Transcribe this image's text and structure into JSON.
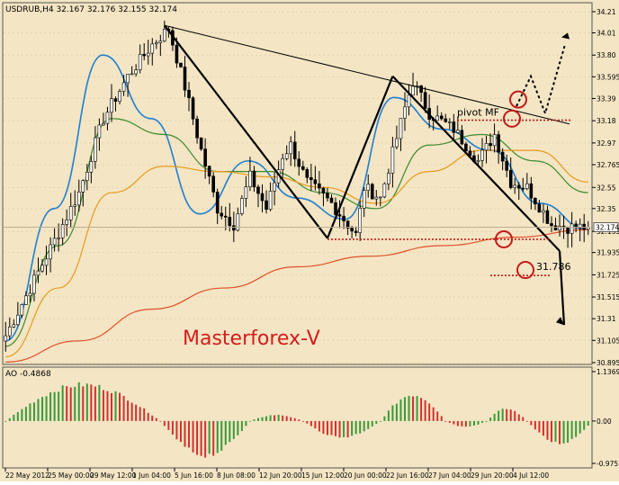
{
  "chart_data": [
    {
      "type": "candlestick",
      "symbol_header": "USDRUB,H4  32.167 32.176 32.155 32.174",
      "last_price_label": "32.174",
      "last_price": 32.174,
      "ylim": [
        30.895,
        34.21
      ],
      "price_ticks": [
        34.21,
        34.01,
        33.8,
        33.595,
        33.39,
        33.18,
        32.97,
        32.765,
        32.55,
        32.35,
        32.135,
        31.935,
        31.725,
        31.515,
        31.31,
        31.105,
        30.895
      ],
      "date_labels": [
        "22 May 2012",
        "25 May 00:00",
        "29 May 12:00",
        "1 Jun 04:00",
        "5 Jun 16:00",
        "8 Jun 08:00",
        "12 Jun 20:00",
        "15 Jun 12:00",
        "20 Jun 00:00",
        "22 Jun 16:00",
        "27 Jun 04:00",
        "29 Jun 20:00",
        "4 Jul 12:00"
      ],
      "bar_count": 144,
      "close_path": [
        [
          0,
          31.15
        ],
        [
          6,
          31.6
        ],
        [
          12,
          32.05
        ],
        [
          18,
          32.5
        ],
        [
          24,
          33.2
        ],
        [
          30,
          33.6
        ],
        [
          36,
          33.9
        ],
        [
          40,
          34.05
        ],
        [
          44,
          33.5
        ],
        [
          48,
          32.9
        ],
        [
          52,
          32.35
        ],
        [
          56,
          32.2
        ],
        [
          60,
          32.65
        ],
        [
          64,
          32.35
        ],
        [
          68,
          32.85
        ],
        [
          70,
          32.95
        ],
        [
          74,
          32.6
        ],
        [
          80,
          32.4
        ],
        [
          86,
          32.1
        ],
        [
          88,
          32.55
        ],
        [
          92,
          32.45
        ],
        [
          98,
          33.3
        ],
        [
          100,
          33.55
        ],
        [
          104,
          33.25
        ],
        [
          110,
          33.1
        ],
        [
          116,
          32.8
        ],
        [
          120,
          33.05
        ],
        [
          124,
          32.6
        ],
        [
          128,
          32.55
        ],
        [
          134,
          32.2
        ],
        [
          138,
          32.174
        ]
      ],
      "indicators": [
        {
          "name": "",
          "color": "#1e7fd4",
          "values": [
            31.1,
            32.35,
            33.8,
            33.2,
            32.3,
            32.8,
            32.45,
            32.25,
            33.4,
            33.1,
            32.9,
            32.4,
            32.15
          ]
        },
        {
          "name": "",
          "color": "#3b8a2f",
          "values": [
            31.05,
            32.0,
            33.2,
            33.05,
            32.7,
            32.7,
            32.5,
            32.35,
            32.95,
            33.05,
            32.8,
            32.5
          ]
        },
        {
          "name": "",
          "color": "#e79a1b",
          "values": [
            30.95,
            31.6,
            32.5,
            32.75,
            32.7,
            32.65,
            32.55,
            32.4,
            32.7,
            32.9,
            32.9,
            32.6
          ]
        },
        {
          "name": "",
          "color": "#e0502a",
          "values": [
            30.9,
            31.1,
            31.4,
            31.6,
            31.8,
            31.9,
            32.0,
            32.08,
            32.15
          ]
        }
      ],
      "annotations": {
        "pivot_label": "pivot MF",
        "pivot_level": 33.185,
        "support_level": 32.06,
        "target_label": "31.786",
        "target_level": 31.786
      },
      "watermark": "Masterforex-V"
    },
    {
      "type": "bar",
      "indicator_header": "AO -0.4868",
      "ylim": [
        -0.9757,
        1.1369
      ],
      "ticks": [
        1.1369,
        0.0,
        -0.9757
      ],
      "tick_labels": [
        "1.1369",
        "0.00",
        "-0.9757"
      ],
      "phases": [
        {
          "start": 0,
          "end": 38,
          "peak": 0.9
        },
        {
          "start": 38,
          "end": 60,
          "peak": -0.85
        },
        {
          "start": 60,
          "end": 73,
          "peak": 0.15
        },
        {
          "start": 73,
          "end": 92,
          "peak": -0.4
        },
        {
          "start": 92,
          "end": 108,
          "peak": 0.65
        },
        {
          "start": 108,
          "end": 118,
          "peak": -0.15
        },
        {
          "start": 118,
          "end": 128,
          "peak": 0.3
        },
        {
          "start": 128,
          "end": 144,
          "peak": -0.55
        }
      ],
      "up_color": "#3a9a3a",
      "down_color": "#d0322f"
    }
  ]
}
